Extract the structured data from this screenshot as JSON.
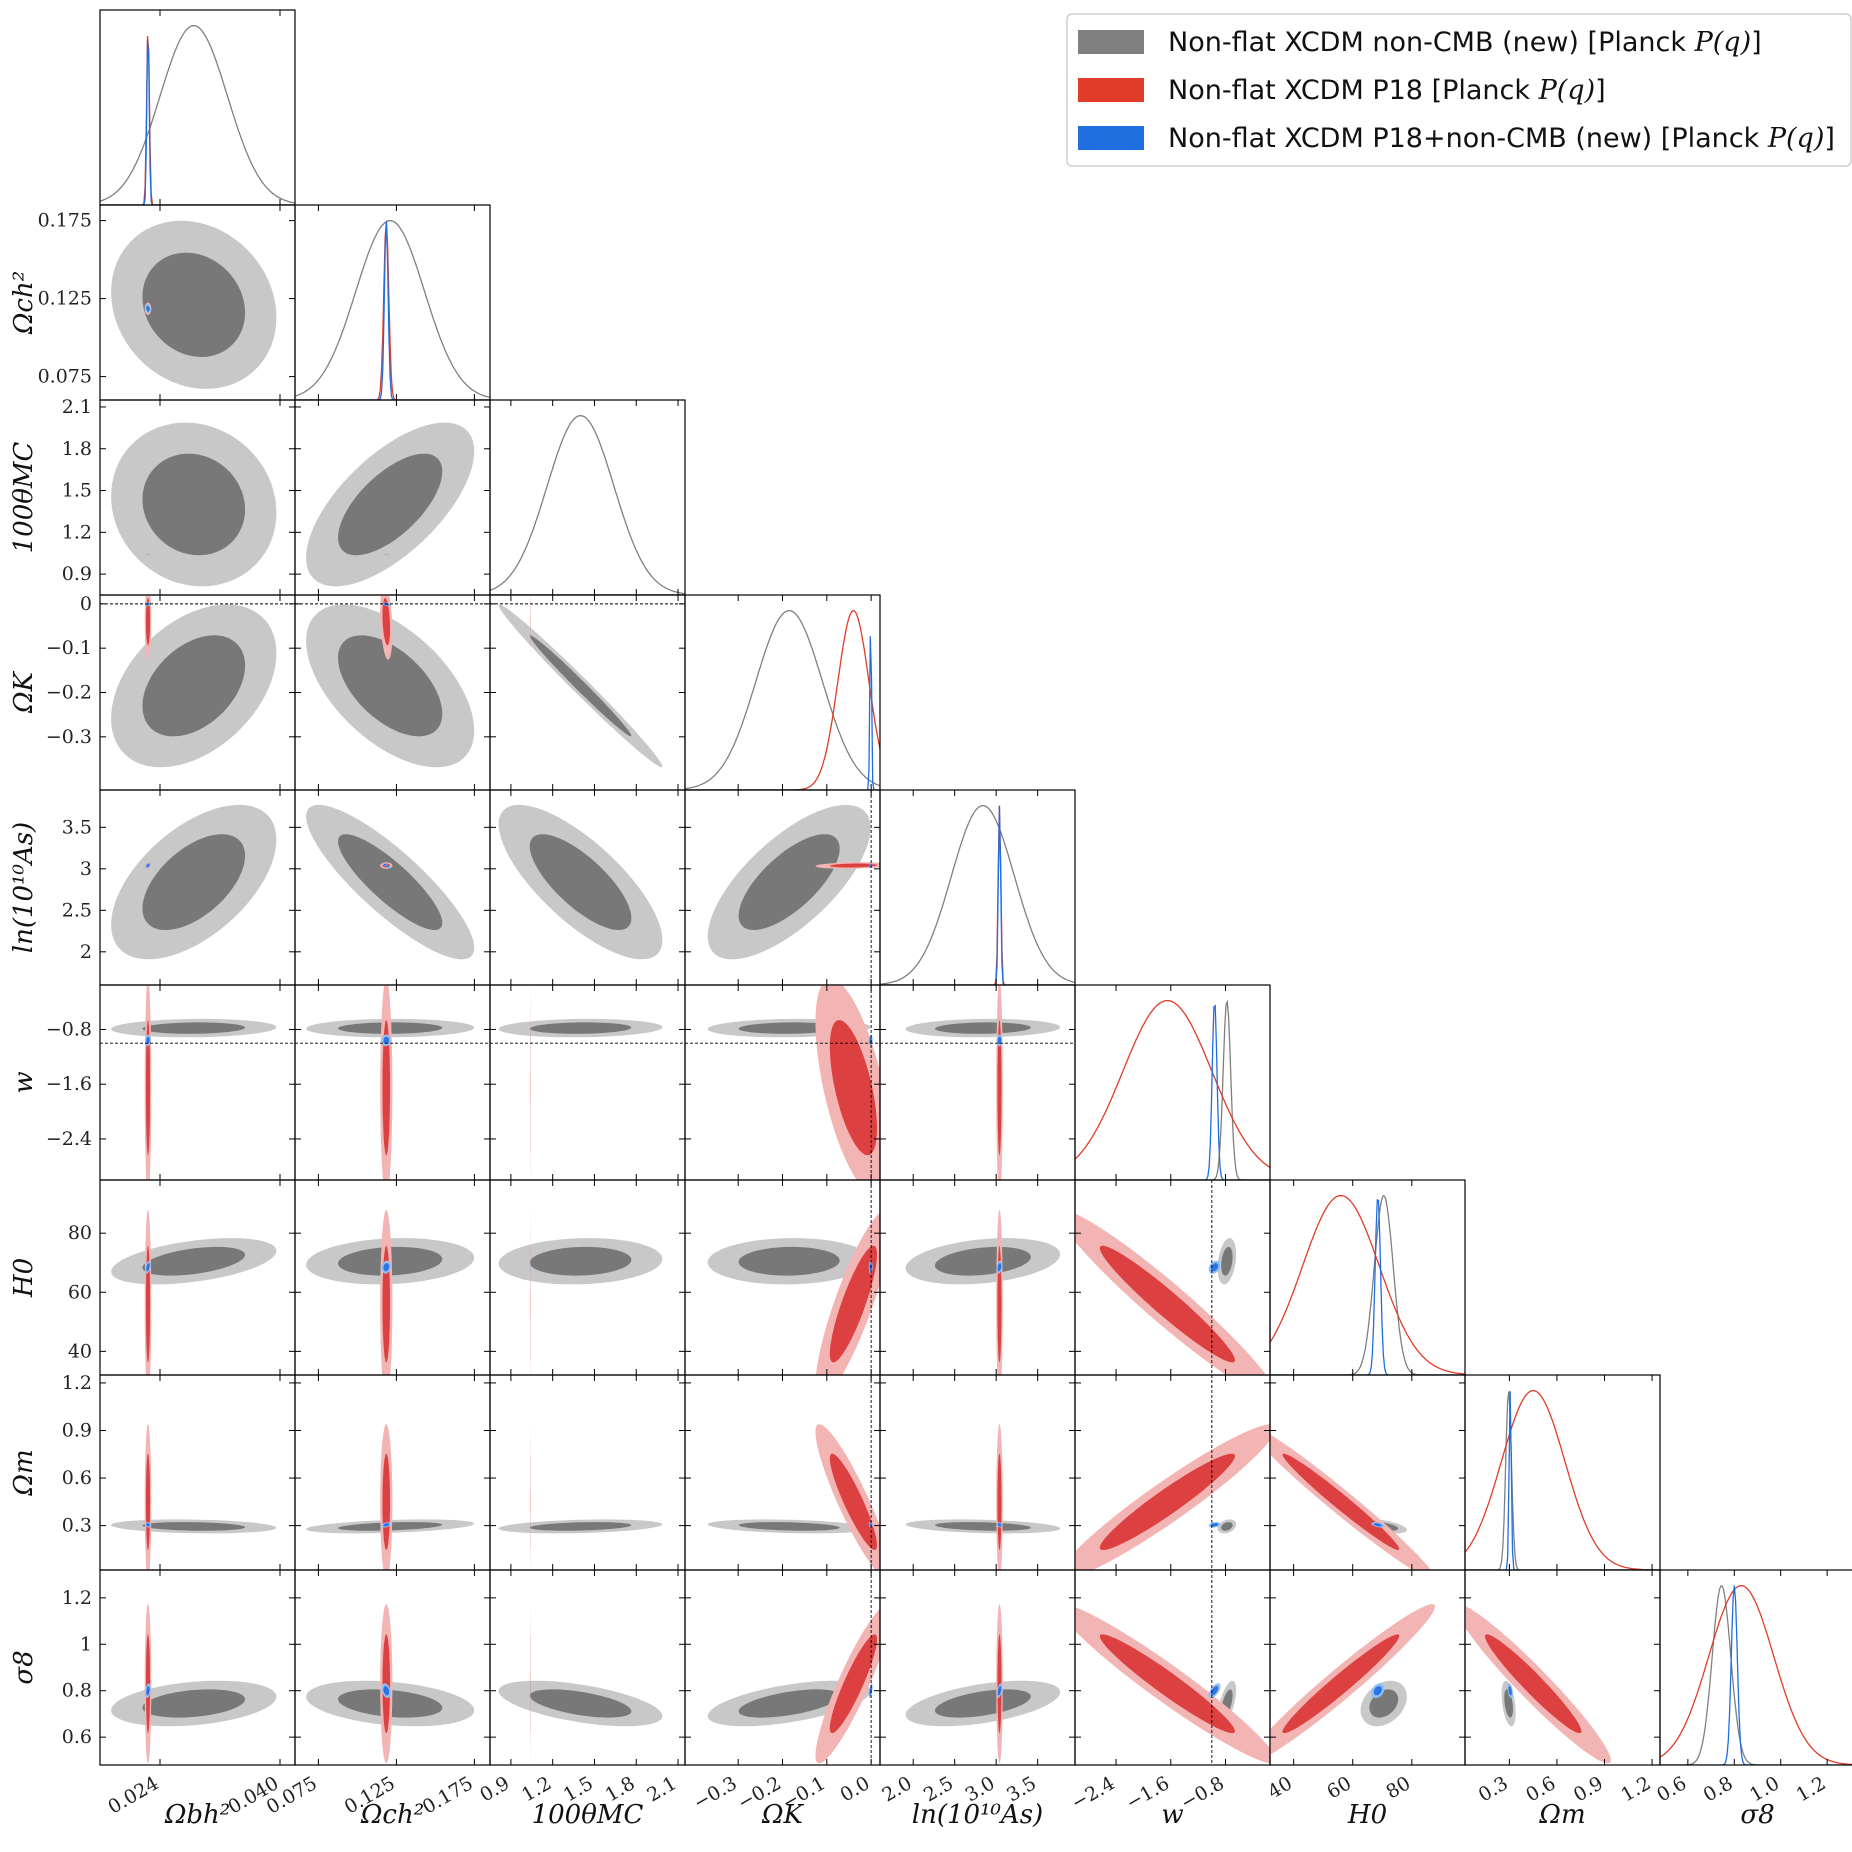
{
  "chart_data": {
    "type": "triangle-corner",
    "parameters": [
      {
        "key": "ob",
        "label": "Ωbh²",
        "range": [
          0.016,
          0.042
        ],
        "ticks": [
          0.024,
          0.04
        ],
        "tick_labels": [
          "0.024",
          "0.040"
        ]
      },
      {
        "key": "oc",
        "label": "Ωch²",
        "range": [
          0.06,
          0.185
        ],
        "ticks": [
          0.075,
          0.125,
          0.175
        ],
        "tick_labels": [
          "0.075",
          "0.125",
          "0.175"
        ]
      },
      {
        "key": "th",
        "label": "100θMC",
        "range": [
          0.75,
          2.15
        ],
        "ticks": [
          0.9,
          1.2,
          1.5,
          1.8,
          2.1
        ],
        "tick_labels": [
          "0.9",
          "1.2",
          "1.5",
          "1.8",
          "2.1"
        ]
      },
      {
        "key": "ok",
        "label": "ΩK",
        "range": [
          -0.42,
          0.02
        ],
        "ticks": [
          -0.3,
          -0.2,
          -0.1,
          0.0
        ],
        "tick_labels": [
          "−0.3",
          "−0.2",
          "−0.1",
          "0.0"
        ],
        "y_tick_labels": [
          "−0.3",
          "−0.2",
          "−0.1",
          "0"
        ]
      },
      {
        "key": "as",
        "label": "ln(10¹⁰As)",
        "range": [
          1.6,
          3.95
        ],
        "ticks": [
          2.0,
          2.5,
          3.0,
          3.5
        ],
        "tick_labels": [
          "2.0",
          "2.5",
          "3.0",
          "3.5"
        ],
        "y_ticks": [
          2,
          2.5,
          3,
          3.5
        ],
        "y_tick_labels": [
          "2",
          "2.5",
          "3",
          "3.5"
        ]
      },
      {
        "key": "w",
        "label": "w",
        "range": [
          -3.0,
          -0.15
        ],
        "ticks": [
          -2.4,
          -1.6,
          -0.8
        ],
        "tick_labels": [
          "−2.4",
          "−1.6",
          "−0.8"
        ]
      },
      {
        "key": "h0",
        "label": "H0",
        "range": [
          32,
          98
        ],
        "ticks": [
          40,
          60,
          80
        ],
        "tick_labels": [
          "40",
          "60",
          "80"
        ]
      },
      {
        "key": "om",
        "label": "Ωm",
        "range": [
          0.02,
          1.25
        ],
        "ticks": [
          0.3,
          0.6,
          0.9,
          1.2
        ],
        "tick_labels": [
          "0.3",
          "0.6",
          "0.9",
          "1.2"
        ]
      },
      {
        "key": "s8",
        "label": "σ8",
        "range": [
          0.48,
          1.32
        ],
        "ticks": [
          0.6,
          0.8,
          1.0,
          1.2
        ],
        "tick_labels": [
          "0.6",
          "0.8",
          "1.0",
          "1.2"
        ],
        "y_ticks": [
          0.6,
          0.8,
          1.0,
          1.2
        ],
        "y_tick_labels": [
          "0.6",
          "0.8",
          "1",
          "1.2"
        ]
      }
    ],
    "series": [
      {
        "name": "Non-flat XCDM non-CMB (new) [Planck P(q)]",
        "color": "#808080",
        "inner_color": "#787878",
        "outer_color": "#c8c8c8"
      },
      {
        "name": "Non-flat XCDM P18 [Planck P(q)]",
        "color": "#e03c28",
        "inner_color": "#dd4040",
        "outer_color": "#f2b5b3"
      },
      {
        "name": "Non-flat XCDM P18+non-CMB (new) [Planck P(q)]",
        "color": "#1f6fe0",
        "inner_color": "#2a74e6",
        "outer_color": "#8fbdf5"
      }
    ],
    "posterior_means": {
      "non_cmb": {
        "ob": 0.0285,
        "oc": 0.121,
        "th": 1.4,
        "ok": -0.185,
        "as": 2.84,
        "w": -0.78,
        "h0": 70.5,
        "om": 0.295,
        "s8": 0.745
      },
      "p18": {
        "ob": 0.0224,
        "oc": 0.1185,
        "th": 1.041,
        "ok": -0.04,
        "as": 3.04,
        "w": -1.65,
        "h0": 56,
        "om": 0.45,
        "s8": 0.83
      },
      "p18_noncmb": {
        "ob": 0.0224,
        "oc": 0.1185,
        "th": 1.041,
        "ok": -0.001,
        "as": 3.04,
        "w": -0.96,
        "h0": 68.5,
        "om": 0.305,
        "s8": 0.8
      }
    },
    "reference_lines": {
      "ok": 0.0,
      "w": -1.0
    },
    "legend_position": "top-right",
    "grid": false
  },
  "legend": {
    "items": [
      {
        "label": "Non-flat XCDM non-CMB (new) [Planck ",
        "math": "P(q)",
        "suffix": "]"
      },
      {
        "label": "Non-flat XCDM P18 [Planck ",
        "math": "P(q)",
        "suffix": "]"
      },
      {
        "label": "Non-flat XCDM P18+non-CMB (new) [Planck ",
        "math": "P(q)",
        "suffix": "]"
      }
    ]
  }
}
